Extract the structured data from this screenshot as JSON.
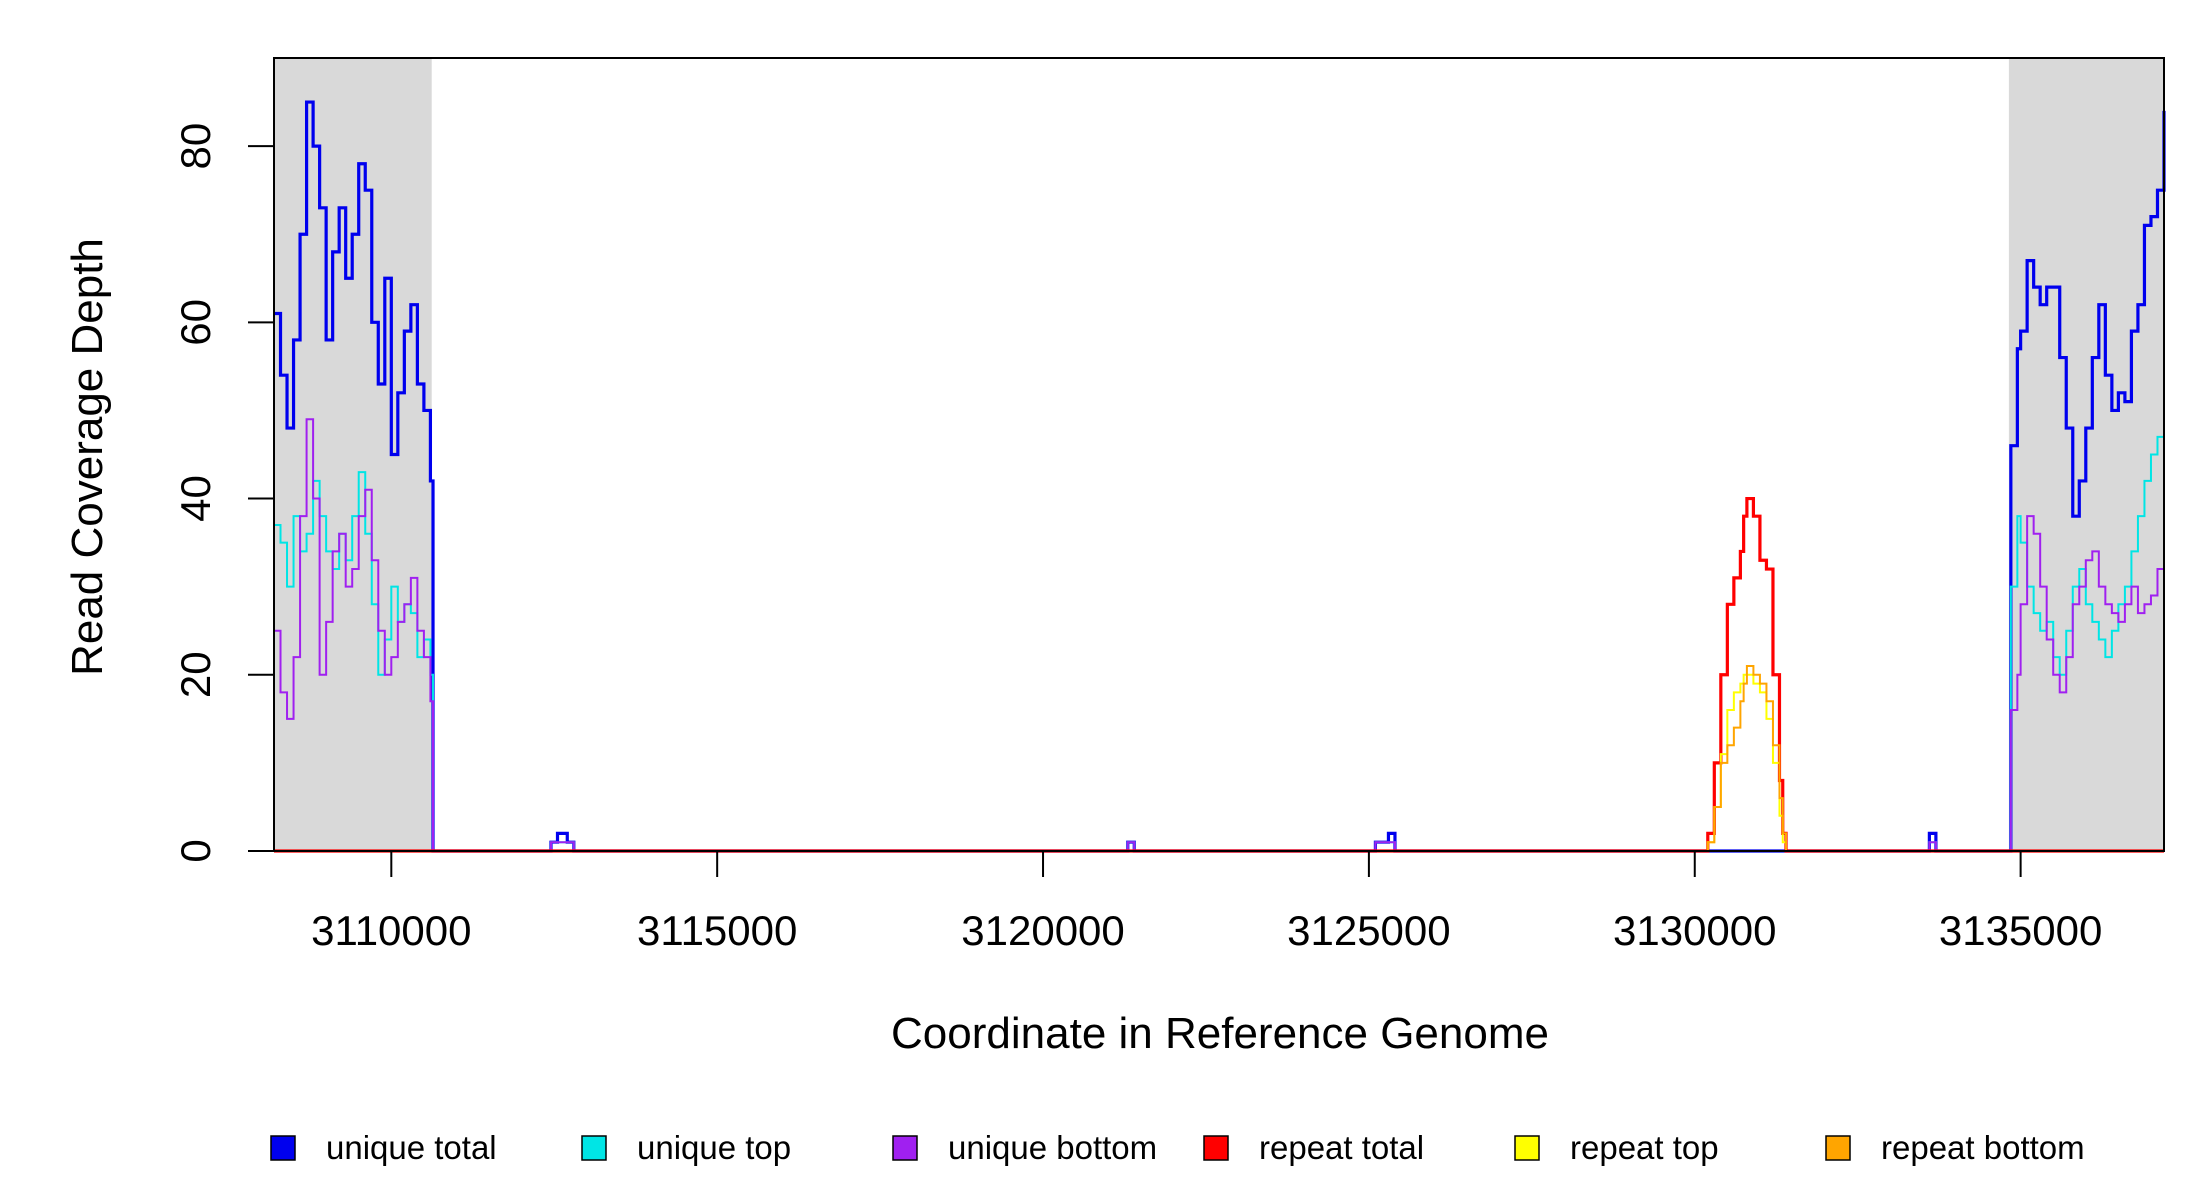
{
  "chart_data": {
    "type": "line",
    "xlabel": "Coordinate in Reference Genome",
    "ylabel": "Read Coverage Depth",
    "xlim": [
      3108200,
      3137200
    ],
    "ylim": [
      0,
      90
    ],
    "x_ticks": [
      3110000,
      3115000,
      3120000,
      3125000,
      3130000,
      3135000
    ],
    "x_tick_labels": [
      "3110000",
      "3115000",
      "3120000",
      "3125000",
      "3130000",
      "3135000"
    ],
    "y_ticks": [
      0,
      20,
      40,
      60,
      80
    ],
    "y_tick_labels": [
      "0",
      "20",
      "40",
      "60",
      "80"
    ],
    "shaded_regions": [
      [
        3108200,
        3110620
      ],
      [
        3134820,
        3137200
      ]
    ],
    "legend_position": "bottom",
    "series": [
      {
        "name": "unique total",
        "color": "#0000ee",
        "width": 3.2,
        "x": [
          3108200,
          3108300,
          3108400,
          3108500,
          3108600,
          3108700,
          3108800,
          3108900,
          3109000,
          3109100,
          3109200,
          3109300,
          3109400,
          3109500,
          3109600,
          3109700,
          3109800,
          3109900,
          3110000,
          3110100,
          3110200,
          3110300,
          3110400,
          3110500,
          3110600,
          3110640,
          3112300,
          3112450,
          3112550,
          3112700,
          3112800,
          3120800,
          3121300,
          3121400,
          3125000,
          3125100,
          3125300,
          3125400,
          3133500,
          3133600,
          3133700,
          3134800,
          3134850,
          3134950,
          3135000,
          3135100,
          3135200,
          3135300,
          3135400,
          3135500,
          3135600,
          3135700,
          3135800,
          3135900,
          3136000,
          3136100,
          3136200,
          3136300,
          3136400,
          3136500,
          3136600,
          3136700,
          3136800,
          3136900,
          3137000,
          3137100,
          3137200
        ],
        "y": [
          61,
          54,
          48,
          58,
          70,
          85,
          80,
          73,
          58,
          68,
          73,
          65,
          70,
          78,
          75,
          60,
          53,
          65,
          45,
          52,
          59,
          62,
          53,
          50,
          42,
          0,
          0,
          1,
          2,
          1,
          0,
          0,
          1,
          0,
          0,
          1,
          2,
          0,
          0,
          2,
          0,
          0,
          46,
          57,
          59,
          67,
          64,
          62,
          64,
          64,
          56,
          48,
          38,
          42,
          48,
          56,
          62,
          54,
          50,
          52,
          51,
          59,
          62,
          71,
          72,
          75,
          84
        ]
      },
      {
        "name": "unique top",
        "color": "#00e5e5",
        "width": 2,
        "x": [
          3108200,
          3108300,
          3108400,
          3108500,
          3108600,
          3108700,
          3108800,
          3108900,
          3109000,
          3109100,
          3109200,
          3109300,
          3109400,
          3109500,
          3109600,
          3109700,
          3109800,
          3109900,
          3110000,
          3110100,
          3110200,
          3110300,
          3110400,
          3110500,
          3110600,
          3110640,
          3112300,
          3112450,
          3112550,
          3112700,
          3112800,
          3120800,
          3121300,
          3121400,
          3125000,
          3125100,
          3125300,
          3125400,
          3133500,
          3133600,
          3133700,
          3134800,
          3134850,
          3134950,
          3135000,
          3135100,
          3135200,
          3135300,
          3135400,
          3135500,
          3135600,
          3135700,
          3135800,
          3135900,
          3136000,
          3136100,
          3136200,
          3136300,
          3136400,
          3136500,
          3136600,
          3136700,
          3136800,
          3136900,
          3137000,
          3137100,
          3137200
        ],
        "y": [
          37,
          35,
          30,
          38,
          34,
          36,
          42,
          38,
          34,
          32,
          36,
          33,
          38,
          43,
          36,
          28,
          20,
          24,
          30,
          26,
          28,
          27,
          22,
          24,
          20,
          0,
          0,
          1,
          1,
          1,
          0,
          0,
          1,
          0,
          0,
          1,
          1,
          0,
          0,
          1,
          0,
          0,
          30,
          38,
          35,
          30,
          27,
          25,
          26,
          22,
          20,
          25,
          30,
          32,
          28,
          26,
          24,
          22,
          25,
          28,
          30,
          34,
          38,
          42,
          45,
          47,
          44
        ]
      },
      {
        "name": "unique bottom",
        "color": "#a020f0",
        "width": 2,
        "x": [
          3108200,
          3108300,
          3108400,
          3108500,
          3108600,
          3108700,
          3108800,
          3108900,
          3109000,
          3109100,
          3109200,
          3109300,
          3109400,
          3109500,
          3109600,
          3109700,
          3109800,
          3109900,
          3110000,
          3110100,
          3110200,
          3110300,
          3110400,
          3110500,
          3110600,
          3110640,
          3112300,
          3112450,
          3112550,
          3112700,
          3112800,
          3120800,
          3121300,
          3121400,
          3125000,
          3125100,
          3125300,
          3125400,
          3133500,
          3133600,
          3133700,
          3134800,
          3134850,
          3134950,
          3135000,
          3135100,
          3135200,
          3135300,
          3135400,
          3135500,
          3135600,
          3135700,
          3135800,
          3135900,
          3136000,
          3136100,
          3136200,
          3136300,
          3136400,
          3136500,
          3136600,
          3136700,
          3136800,
          3136900,
          3137000,
          3137100,
          3137200
        ],
        "y": [
          25,
          18,
          15,
          22,
          38,
          49,
          40,
          20,
          26,
          34,
          36,
          30,
          32,
          38,
          41,
          33,
          25,
          20,
          22,
          26,
          28,
          31,
          25,
          22,
          17,
          0,
          0,
          1,
          1,
          1,
          0,
          0,
          1,
          0,
          0,
          1,
          1,
          0,
          0,
          1,
          0,
          0,
          16,
          20,
          28,
          38,
          36,
          30,
          24,
          20,
          18,
          22,
          28,
          30,
          33,
          34,
          30,
          28,
          27,
          26,
          28,
          30,
          27,
          28,
          29,
          32,
          38
        ]
      },
      {
        "name": "repeat total",
        "color": "#ff0000",
        "width": 3.2,
        "x": [
          3108200,
          3130150,
          3130200,
          3130300,
          3130400,
          3130500,
          3130600,
          3130700,
          3130750,
          3130800,
          3130900,
          3131000,
          3131100,
          3131200,
          3131300,
          3131350,
          3131400,
          3137200
        ],
        "y": [
          0,
          0,
          2,
          10,
          20,
          28,
          31,
          34,
          38,
          40,
          38,
          33,
          32,
          20,
          8,
          2,
          0,
          0
        ]
      },
      {
        "name": "repeat top",
        "color": "#ffff00",
        "width": 2,
        "x": [
          3108200,
          3130150,
          3130200,
          3130300,
          3130400,
          3130500,
          3130600,
          3130700,
          3130750,
          3130800,
          3130900,
          3131000,
          3131100,
          3131200,
          3131300,
          3131350,
          3131400,
          3137200
        ],
        "y": [
          0,
          0,
          1,
          5,
          11,
          16,
          18,
          19,
          20,
          20,
          19,
          18,
          15,
          10,
          4,
          1,
          0,
          0
        ]
      },
      {
        "name": "repeat bottom",
        "color": "#ffa500",
        "width": 2,
        "x": [
          3108200,
          3130150,
          3130200,
          3130300,
          3130400,
          3130500,
          3130600,
          3130700,
          3130750,
          3130800,
          3130900,
          3131000,
          3131100,
          3131200,
          3131300,
          3131350,
          3131400,
          3137200
        ],
        "y": [
          0,
          0,
          1,
          5,
          10,
          12,
          14,
          17,
          19,
          21,
          20,
          19,
          17,
          12,
          6,
          2,
          0,
          0
        ]
      }
    ]
  }
}
